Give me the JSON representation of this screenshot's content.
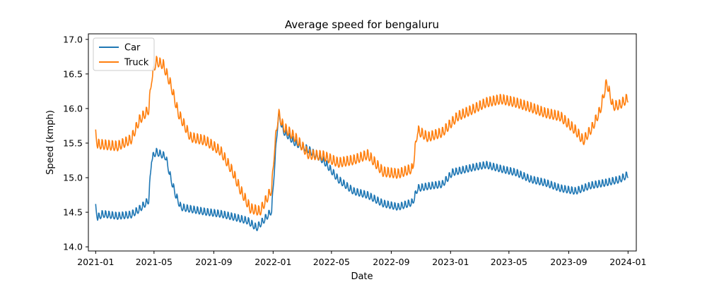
{
  "chart_data": {
    "type": "line",
    "title": "Average speed for bengaluru",
    "xlabel": "Date",
    "ylabel": "Speed (kmph)",
    "xlim": [
      "2020-12-17",
      "2024-01-18"
    ],
    "ylim": [
      13.94,
      17.08
    ],
    "x_ticks": [
      "2021-01",
      "2021-05",
      "2021-09",
      "2022-01",
      "2022-05",
      "2022-09",
      "2023-01",
      "2023-05",
      "2023-09",
      "2024-01"
    ],
    "y_ticks": [
      14.0,
      14.5,
      15.0,
      15.5,
      16.0,
      16.5,
      17.0
    ],
    "y_tick_labels": [
      "14.0",
      "14.5",
      "15.0",
      "15.5",
      "16.0",
      "16.5",
      "17.0"
    ],
    "grid": false,
    "legend_position": "top-left",
    "weekly_oscillation": true,
    "series": [
      {
        "name": "Car",
        "color": "#1f77b4",
        "amplitude": 0.13,
        "points": [
          [
            "2021-01-01",
            14.55
          ],
          [
            "2021-01-05",
            14.4
          ],
          [
            "2021-01-15",
            14.45
          ],
          [
            "2021-02-15",
            14.42
          ],
          [
            "2021-03-15",
            14.44
          ],
          [
            "2021-04-01",
            14.52
          ],
          [
            "2021-04-20",
            14.65
          ],
          [
            "2021-04-26",
            15.25
          ],
          [
            "2021-05-05",
            15.35
          ],
          [
            "2021-05-25",
            15.28
          ],
          [
            "2021-06-05",
            14.95
          ],
          [
            "2021-06-15",
            14.72
          ],
          [
            "2021-06-25",
            14.55
          ],
          [
            "2021-07-15",
            14.52
          ],
          [
            "2021-08-15",
            14.48
          ],
          [
            "2021-09-15",
            14.45
          ],
          [
            "2021-10-15",
            14.4
          ],
          [
            "2021-11-10",
            14.35
          ],
          [
            "2021-11-28",
            14.25
          ],
          [
            "2021-12-15",
            14.38
          ],
          [
            "2021-12-29",
            14.5
          ],
          [
            "2022-01-04",
            15.15
          ],
          [
            "2022-01-12",
            15.9
          ],
          [
            "2022-01-22",
            15.65
          ],
          [
            "2022-02-15",
            15.48
          ],
          [
            "2022-03-15",
            15.38
          ],
          [
            "2022-04-15",
            15.22
          ],
          [
            "2022-05-15",
            14.95
          ],
          [
            "2022-06-15",
            14.78
          ],
          [
            "2022-07-15",
            14.72
          ],
          [
            "2022-08-15",
            14.6
          ],
          [
            "2022-09-15",
            14.55
          ],
          [
            "2022-10-15",
            14.62
          ],
          [
            "2022-10-25",
            14.82
          ],
          [
            "2022-11-15",
            14.85
          ],
          [
            "2022-12-15",
            14.88
          ],
          [
            "2023-01-05",
            15.05
          ],
          [
            "2023-02-15",
            15.12
          ],
          [
            "2023-03-15",
            15.16
          ],
          [
            "2023-04-15",
            15.1
          ],
          [
            "2023-05-15",
            15.05
          ],
          [
            "2023-06-15",
            14.95
          ],
          [
            "2023-07-15",
            14.9
          ],
          [
            "2023-08-15",
            14.82
          ],
          [
            "2023-09-15",
            14.78
          ],
          [
            "2023-10-15",
            14.86
          ],
          [
            "2023-11-15",
            14.9
          ],
          [
            "2023-12-15",
            14.95
          ],
          [
            "2024-01-01",
            15.02
          ]
        ]
      },
      {
        "name": "Truck",
        "color": "#ff7f0e",
        "amplitude": 0.18,
        "points": [
          [
            "2021-01-01",
            15.6
          ],
          [
            "2021-01-05",
            15.45
          ],
          [
            "2021-02-15",
            15.42
          ],
          [
            "2021-03-15",
            15.52
          ],
          [
            "2021-04-01",
            15.8
          ],
          [
            "2021-04-20",
            15.95
          ],
          [
            "2021-04-26",
            16.4
          ],
          [
            "2021-05-05",
            16.65
          ],
          [
            "2021-05-20",
            16.6
          ],
          [
            "2021-06-05",
            16.3
          ],
          [
            "2021-06-20",
            15.9
          ],
          [
            "2021-07-15",
            15.55
          ],
          [
            "2021-08-15",
            15.5
          ],
          [
            "2021-09-15",
            15.35
          ],
          [
            "2021-10-10",
            15.05
          ],
          [
            "2021-10-25",
            14.8
          ],
          [
            "2021-11-15",
            14.52
          ],
          [
            "2021-12-05",
            14.48
          ],
          [
            "2021-12-29",
            14.8
          ],
          [
            "2022-01-04",
            15.4
          ],
          [
            "2022-01-12",
            15.9
          ],
          [
            "2022-01-22",
            15.7
          ],
          [
            "2022-02-15",
            15.55
          ],
          [
            "2022-03-15",
            15.3
          ],
          [
            "2022-04-15",
            15.28
          ],
          [
            "2022-05-15",
            15.18
          ],
          [
            "2022-06-15",
            15.22
          ],
          [
            "2022-07-15",
            15.3
          ],
          [
            "2022-08-15",
            15.05
          ],
          [
            "2022-09-15",
            15.02
          ],
          [
            "2022-10-15",
            15.1
          ],
          [
            "2022-10-25",
            15.65
          ],
          [
            "2022-11-15",
            15.55
          ],
          [
            "2022-12-15",
            15.62
          ],
          [
            "2023-01-15",
            15.85
          ],
          [
            "2023-02-15",
            15.95
          ],
          [
            "2023-03-15",
            16.05
          ],
          [
            "2023-04-15",
            16.1
          ],
          [
            "2023-05-15",
            16.05
          ],
          [
            "2023-06-15",
            15.98
          ],
          [
            "2023-07-15",
            15.9
          ],
          [
            "2023-08-15",
            15.85
          ],
          [
            "2023-09-15",
            15.65
          ],
          [
            "2023-10-01",
            15.5
          ],
          [
            "2023-10-20",
            15.7
          ],
          [
            "2023-11-05",
            15.95
          ],
          [
            "2023-11-18",
            16.35
          ],
          [
            "2023-12-01",
            16.0
          ],
          [
            "2023-12-15",
            16.02
          ],
          [
            "2024-01-01",
            16.12
          ]
        ]
      }
    ]
  }
}
